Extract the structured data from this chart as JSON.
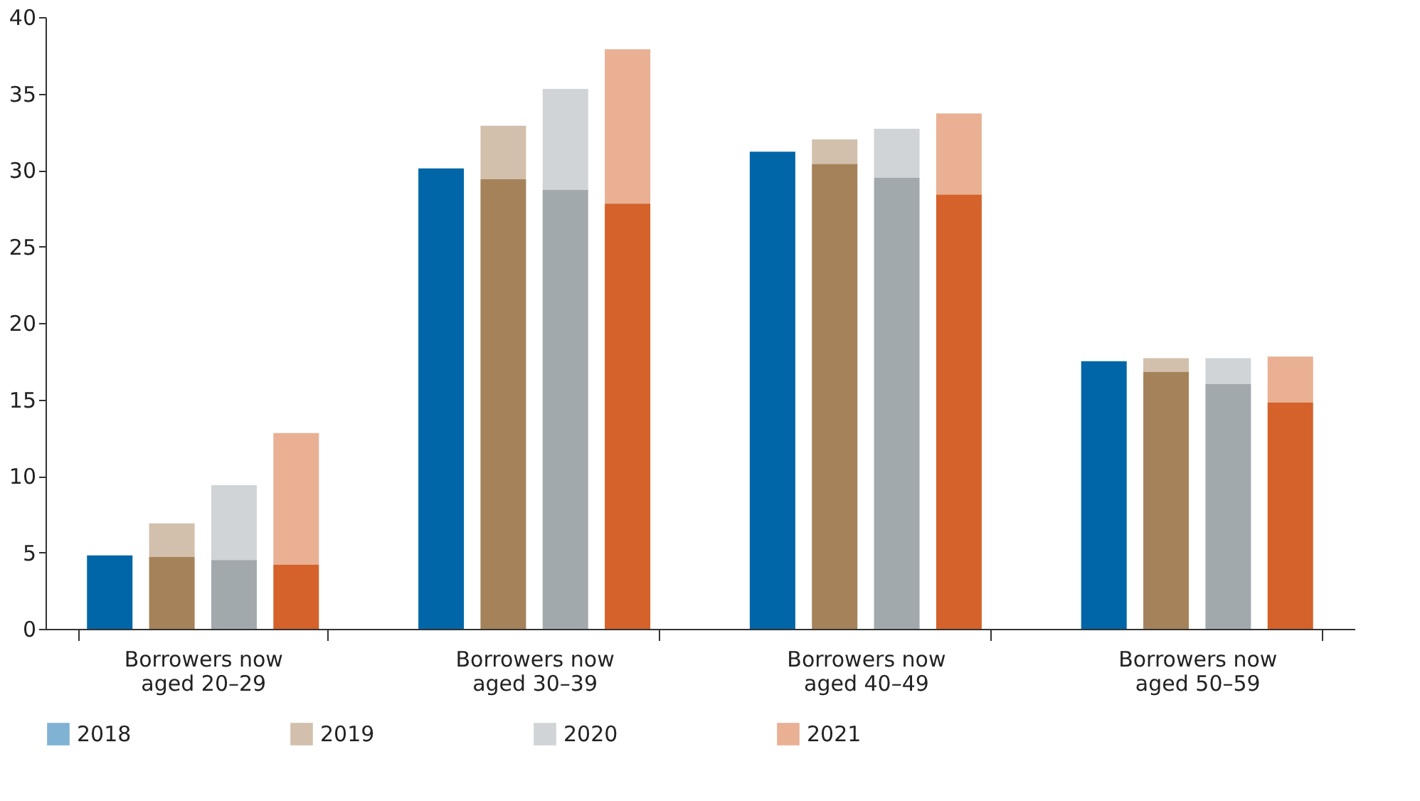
{
  "chart_data": {
    "type": "bar",
    "categories": [
      "Borrowers now aged 20–29",
      "Borrowers now aged 30–39",
      "Borrowers now aged 40–49",
      "Borrowers now aged 50–59"
    ],
    "series": [
      {
        "name": "2018",
        "color": "#0066a8",
        "values": [
          4.8,
          30.1,
          31.2,
          17.5
        ]
      },
      {
        "name": "2019",
        "color": "#a5825a",
        "values": [
          4.7,
          29.4,
          30.4,
          16.8
        ]
      },
      {
        "color": "#a5825a",
        "base": [
          4.7,
          29.4,
          30.4,
          16.8
        ],
        "values": [
          2.2,
          3.5,
          1.6,
          0.9
        ]
      },
      {
        "name": "2020",
        "color": "#a2a9ad",
        "values": [
          4.5,
          28.7,
          29.5,
          16.0
        ]
      },
      {
        "color": "#a2a9ad",
        "base": [
          4.5,
          28.7,
          29.5,
          16.0
        ],
        "values": [
          4.9,
          6.6,
          3.2,
          1.7
        ]
      },
      {
        "name": "2021",
        "color": "#d4622a",
        "values": [
          4.2,
          27.8,
          28.4,
          14.8
        ]
      },
      {
        "color": "#d4622a",
        "base": [
          4.2,
          27.8,
          28.4,
          14.8
        ],
        "values": [
          8.6,
          10.1,
          5.3,
          3.0
        ]
      }
    ],
    "ylim": [
      0,
      40
    ],
    "yticks": [
      0,
      5,
      10,
      15,
      20,
      25,
      30,
      35,
      40
    ],
    "grid": false,
    "legend": "bottom left"
  }
}
